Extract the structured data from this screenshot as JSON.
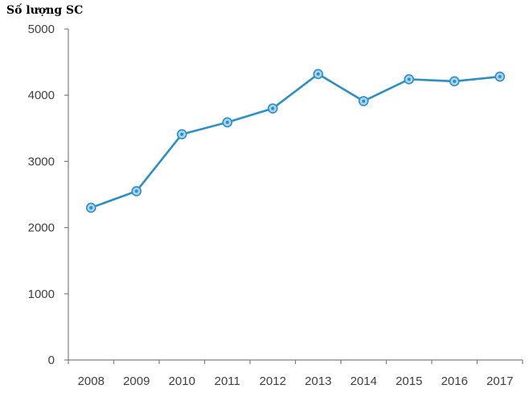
{
  "chart_data": {
    "type": "line",
    "title": "",
    "ylabel": "Số lượng SC",
    "xlabel": "",
    "categories": [
      "2008",
      "2009",
      "2010",
      "2011",
      "2012",
      "2013",
      "2014",
      "2015",
      "2016",
      "2017"
    ],
    "series": [
      {
        "values": [
          2300,
          2550,
          3410,
          3590,
          3800,
          4320,
          3910,
          4240,
          4210,
          4280
        ]
      }
    ],
    "ylim": [
      0,
      5000
    ],
    "yticks": [
      0,
      1000,
      2000,
      3000,
      4000,
      5000
    ],
    "grid": false,
    "colors": {
      "line": "#2e8fc4",
      "marker_fill": "#a9d4ee",
      "marker_center": "#2e8fc4"
    }
  }
}
